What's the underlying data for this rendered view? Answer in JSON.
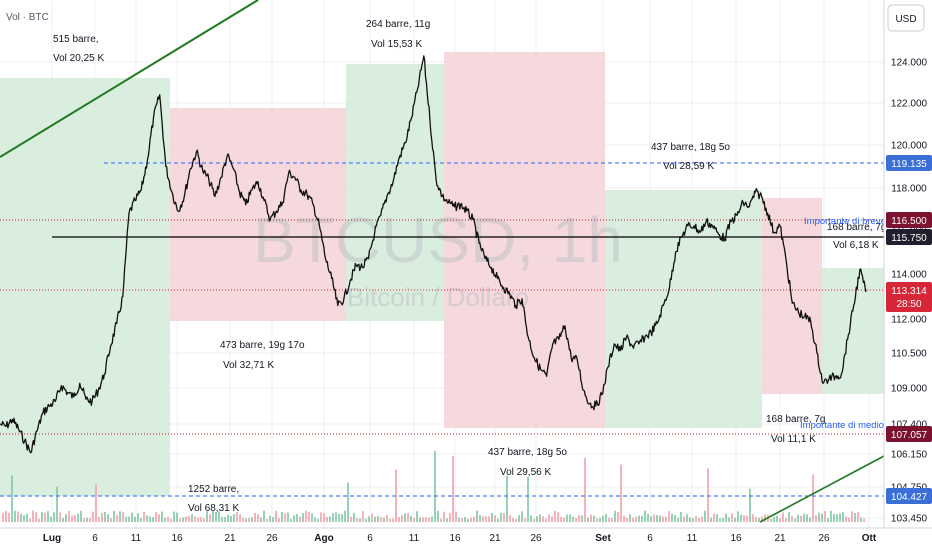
{
  "header": {
    "indicator_label": "Vol · BTC",
    "currency_button": "USD"
  },
  "watermark": {
    "symbol": "BTCUSD, 1h",
    "name": "Bitcoin / Dollaro"
  },
  "colors": {
    "background": "#ffffff",
    "green_zone": "#d4ebd9",
    "red_zone": "#f3d2d6",
    "grid": "#eceff3",
    "dashed_blue": "#2962ff",
    "trendline": "#1f7a1f",
    "price_line": "#000000",
    "dotted_red": "#b22222",
    "tag_dark": "#1f1f2e",
    "tag_red": "#d72638",
    "tag_blue": "#3b6fd8",
    "tag_maroon": "#7a1230"
  },
  "chart_data": {
    "type": "line",
    "title": "",
    "xlabel": "",
    "ylabel": "",
    "x_ticks": [
      "Lug",
      "6",
      "11",
      "16",
      "21",
      "26",
      "Ago",
      "6",
      "11",
      "16",
      "21",
      "26",
      "Set",
      "6",
      "11",
      "16",
      "21",
      "26",
      "Ott"
    ],
    "y_ticks": [
      "124.000",
      "122.000",
      "120.000",
      "118.000",
      "116.000",
      "114.000",
      "112.000",
      "110.500",
      "109.000",
      "107.400",
      "106.150",
      "104.750",
      "103.450"
    ],
    "ylim": [
      103000,
      125500
    ],
    "series": [
      {
        "values": [
          107400,
          107300,
          107600,
          107200,
          106700,
          106200,
          107100,
          107900,
          108200,
          108400,
          109100,
          108800,
          108600,
          109200,
          108500,
          108400,
          108900,
          109600,
          110800,
          111800,
          113000,
          116800,
          117400,
          117900,
          119300,
          121300,
          122400,
          119000,
          117800,
          116900,
          117600,
          118900,
          119700,
          118800,
          118400,
          117600,
          118500,
          119500,
          118900,
          117800,
          117200,
          117900,
          118300,
          117400,
          116500,
          116900,
          117300,
          118700,
          118500,
          117900,
          117700,
          117200,
          116200,
          114700,
          113800,
          112600,
          112900,
          113700,
          114400,
          114300,
          114700,
          115900,
          116700,
          117600,
          118300,
          119400,
          120100,
          121300,
          122700,
          124300,
          121200,
          118400,
          117600,
          117300,
          117100,
          117200,
          116900,
          116500,
          115400,
          114700,
          114300,
          113800,
          113400,
          113100,
          112600,
          112900,
          111200,
          110300,
          109800,
          109500,
          110900,
          111100,
          111700,
          110300,
          110200,
          108900,
          108300,
          108200,
          108700,
          109900,
          110900,
          110600,
          111200,
          110800,
          110900,
          111200,
          111400,
          111800,
          112600,
          113400,
          115000,
          115700,
          116200,
          116200,
          115900,
          116400,
          116200,
          115800,
          115600,
          116400,
          116700,
          117300,
          117100,
          117800,
          117600,
          116800,
          115900,
          116200,
          114600,
          112700,
          112300,
          112100,
          111900,
          110500,
          109200,
          109400,
          109500,
          109600,
          111100,
          112600,
          114200,
          113200
        ]
      }
    ],
    "levels": [
      {
        "label": "119.135",
        "value": 119135,
        "style": "dashed-blue"
      },
      {
        "label": "116.500",
        "value": 116500,
        "style": "dotted-red"
      },
      {
        "label": "115.750",
        "value": 115750,
        "style": "solid-black"
      },
      {
        "label": "107.057",
        "value": 107057,
        "style": "dotted-red"
      },
      {
        "label": "104.427",
        "value": 104427,
        "style": "dashed-blue"
      }
    ],
    "last_price": {
      "value": "113.314",
      "countdown": "28:50"
    },
    "annotations": [
      {
        "line1": "515 barre,",
        "line2": "Vol 20,25 K"
      },
      {
        "line1": "264 barre, 11g",
        "line2": "Vol 15,53 K"
      },
      {
        "line1": "437 barre, 18g 5o",
        "line2": "Vol 28,59 K"
      },
      {
        "line1": "168 barre, 7g",
        "line2": "Vol 6,18 K"
      },
      {
        "line1": "473 barre, 19g 17o",
        "line2": "Vol 32,71 K"
      },
      {
        "line1": "168 barre, 7g",
        "line2": "Vol 11,1 K"
      },
      {
        "line1": "437 barre, 18g 5o",
        "line2": "Vol 29,56 K"
      },
      {
        "line1": "1252 barre,",
        "line2": "Vol 68,31 K"
      }
    ],
    "notes": [
      "Importante di breve",
      "Importante di medio"
    ],
    "grid": true
  }
}
